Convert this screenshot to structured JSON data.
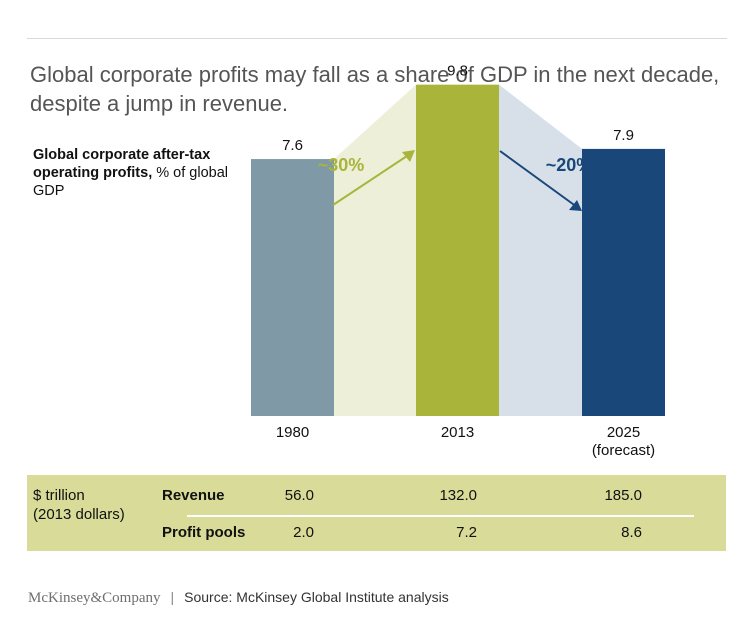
{
  "header": {
    "title": "Global corporate profits may fall as a share of GDP in the next decade, despite a jump in revenue."
  },
  "measure": {
    "bold": "Global corporate after-tax operating profits,",
    "normal": " % of global GDP"
  },
  "chart_data": {
    "type": "bar",
    "categories": [
      "1980",
      "2013",
      "2025"
    ],
    "category_sublabels": [
      "",
      "",
      "(forecast)"
    ],
    "values": [
      7.6,
      9.8,
      7.9
    ],
    "value_labels": [
      "7.6",
      "9.8",
      "7.9"
    ],
    "bar_colors": [
      "#7f9aa6",
      "#a8b43a",
      "#1a477a"
    ],
    "band_colors": [
      "#edefd9",
      "#d7dfe8"
    ],
    "ylim": [
      0,
      10.5
    ],
    "annotations": [
      {
        "label": "~30%",
        "color": "#a8b43a"
      },
      {
        "label": "~20%",
        "color": "#1a477a"
      }
    ]
  },
  "table": {
    "unit_line1": "$ trillion",
    "unit_line2": "(2013 dollars)",
    "rows": [
      {
        "label": "Revenue",
        "values": [
          "56.0",
          "132.0",
          "185.0"
        ]
      },
      {
        "label": "Profit pools",
        "values": [
          "2.0",
          "7.2",
          "8.6"
        ]
      }
    ]
  },
  "footer": {
    "brand": "McKinsey&Company",
    "source": "Source: McKinsey Global Institute analysis"
  }
}
